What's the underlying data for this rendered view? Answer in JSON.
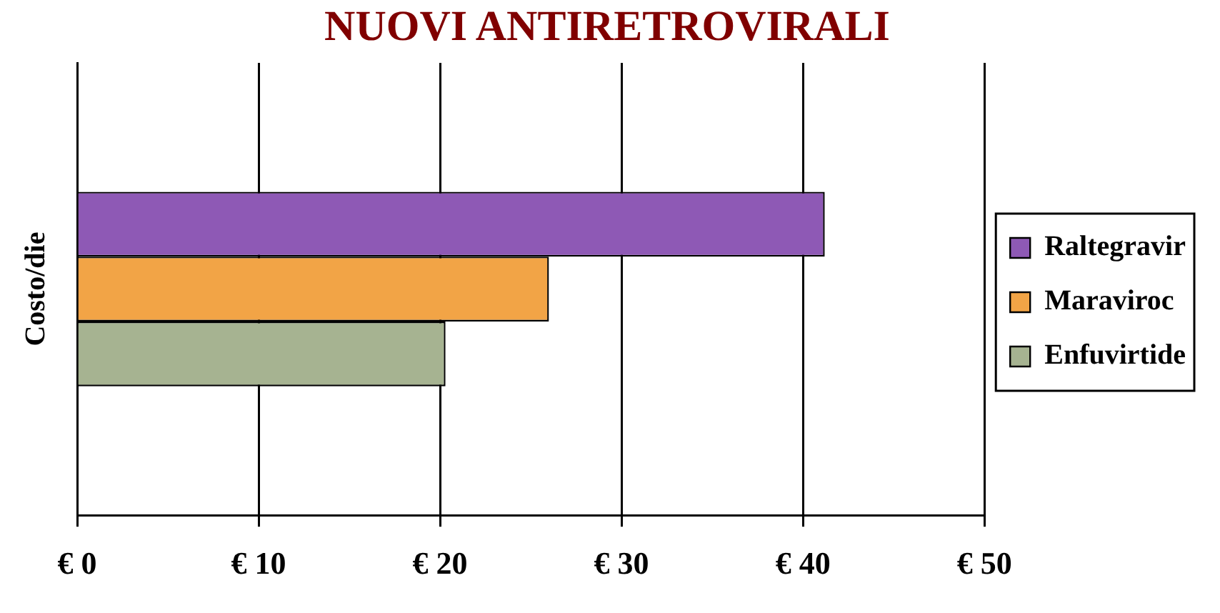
{
  "chart_data": {
    "type": "bar",
    "orientation": "horizontal",
    "title": "NUOVI ANTIRETROVIRALI",
    "ylabel": "Costo/die",
    "categories": [
      null
    ],
    "series": [
      {
        "name": "Raltegravir",
        "color": "#8e59b5",
        "values": [
          41.2
        ]
      },
      {
        "name": "Maraviroc",
        "color": "#f2a446",
        "values": [
          26.0
        ]
      },
      {
        "name": "Enfuvirtide",
        "color": "#a6b391",
        "values": [
          20.3
        ]
      }
    ],
    "xlim": [
      0,
      50
    ],
    "xticks": [
      {
        "value": 0,
        "label": "€ 0"
      },
      {
        "value": 10,
        "label": "€ 10"
      },
      {
        "value": 20,
        "label": "€ 20"
      },
      {
        "value": 30,
        "label": "€ 30"
      },
      {
        "value": 40,
        "label": "€ 40"
      },
      {
        "value": 50,
        "label": "€ 50"
      }
    ],
    "grid": "x",
    "legend": "right"
  }
}
